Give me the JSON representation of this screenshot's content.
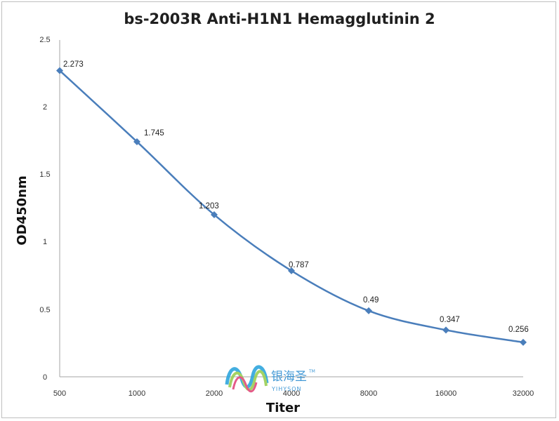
{
  "chart_data": {
    "type": "line",
    "title": "bs-2003R Anti-H1N1 Hemagglutinin 2",
    "xlabel": "Titer",
    "ylabel": "OD450nm",
    "categories": [
      "500",
      "1000",
      "2000",
      "4000",
      "8000",
      "16000",
      "32000"
    ],
    "series": [
      {
        "values": [
          2.273,
          1.745,
          1.203,
          0.787,
          0.49,
          0.347,
          0.256
        ]
      }
    ],
    "data_labels": [
      "2.273",
      "1.745",
      "1.203",
      "0.787",
      "0.49",
      "0.347",
      "0.256"
    ],
    "y_ticks": [
      "0",
      "0.5",
      "1",
      "1.5",
      "2",
      "2.5"
    ],
    "ylim": [
      0,
      2.5
    ],
    "grid": false,
    "legend": "none",
    "colors": {
      "line": "#4a7ebb",
      "marker": "#4a7ebb",
      "axis": "#a6a6a6"
    }
  },
  "watermark": {
    "chinese": "银海圣",
    "english": "YIHYSON",
    "trademark": "TM",
    "logo_icon": "wave-logo-icon"
  }
}
